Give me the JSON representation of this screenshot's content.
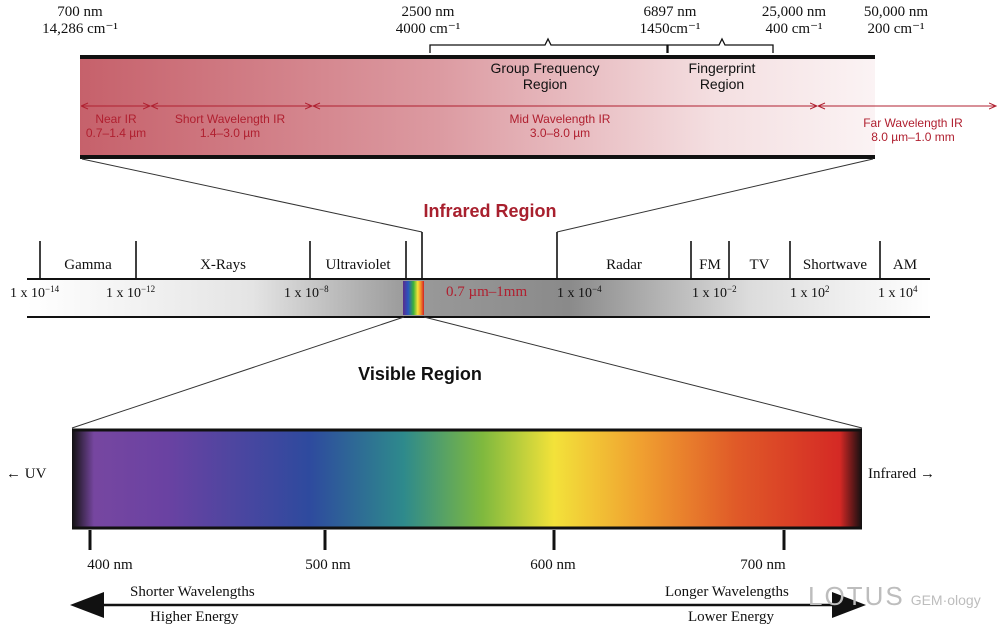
{
  "ir_scale": {
    "top_left": {
      "nm": "700 nm",
      "cm": "14,286 cm⁻¹"
    },
    "mid1": {
      "nm": "2500 nm",
      "cm": "4000 cm⁻¹"
    },
    "mid2": {
      "nm": "6897 nm",
      "cm": "1450cm⁻¹"
    },
    "mid3": {
      "nm": "25,000 nm",
      "cm": "400 cm⁻¹"
    },
    "right": {
      "nm": "50,000 nm",
      "cm": "200 cm⁻¹"
    }
  },
  "ir_regions": {
    "group_frequency": [
      "Group Frequency",
      "Region"
    ],
    "fingerprint": [
      "Fingerprint",
      "Region"
    ],
    "near_ir": [
      "Near IR",
      "0.7–1.4 µm"
    ],
    "short_ir": [
      "Short Wavelength IR",
      "1.4–3.0 µm"
    ],
    "mid_ir": [
      "Mid Wavelength IR",
      "3.0–8.0 µm"
    ],
    "far_ir": [
      "Far Wavelength IR",
      "8.0 µm–1.0 mm"
    ]
  },
  "infrared_title": "Infrared Region",
  "spectrum": {
    "bands": [
      "Gamma",
      "X-Rays",
      "Ultraviolet",
      "Radar",
      "FM",
      "TV",
      "Shortwave",
      "AM"
    ],
    "ticks": [
      {
        "base": "1 x 10",
        "exp": "−14"
      },
      {
        "base": "1 x 10",
        "exp": "−12"
      },
      {
        "base": "1 x 10",
        "exp": "−8"
      },
      {
        "base": "1 x 10",
        "exp": "−4"
      },
      {
        "base": "1 x 10",
        "exp": "−2"
      },
      {
        "base": "1 x 10",
        "exp": "2"
      },
      {
        "base": "1 x 10",
        "exp": "4"
      }
    ],
    "ir_range": "0.7 µm–1mm"
  },
  "visible_title": "Visible Region",
  "visible": {
    "left_label": "← UV",
    "right_label": "Infrared →",
    "ticks": [
      "400 nm",
      "500 nm",
      "600 nm",
      "700 nm"
    ]
  },
  "energy": {
    "left_top": "Shorter Wavelengths",
    "left_bottom": "Higher Energy",
    "right_top": "Longer Wavelengths",
    "right_bottom": "Lower Energy"
  },
  "brand": {
    "main": "LOTUS",
    "sub": "GEM·ology"
  }
}
